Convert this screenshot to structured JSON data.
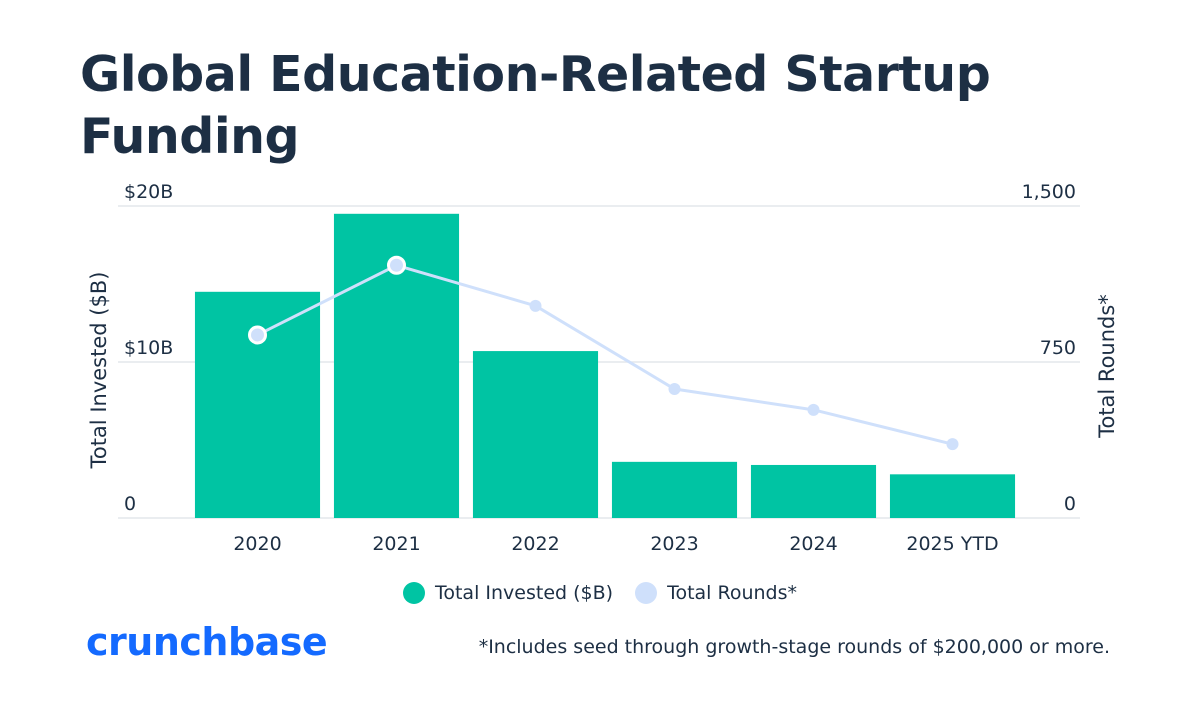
{
  "colors": {
    "bar": "#00c4a3",
    "line": "#cfe0fb",
    "point": "#cfe0fb",
    "point_stroke": "#ffffff",
    "grid": "#e3e7ec",
    "title": "#1d2f44",
    "brand": "#146aff"
  },
  "brand": {
    "name": "crunchbase"
  },
  "footnote": "*Includes seed through growth-stage rounds of $200,000 or more.",
  "chart_data": {
    "type": "bar",
    "title": "Global Education-Related Startup Funding",
    "categories": [
      "2020",
      "2021",
      "2022",
      "2023",
      "2024",
      "2025 YTD"
    ],
    "series": [
      {
        "name": "Total Invested ($B)",
        "chart": "bar",
        "axis": "left",
        "values": [
          14.5,
          19.5,
          10.7,
          3.6,
          3.4,
          2.8
        ]
      },
      {
        "name": "Total Rounds*",
        "chart": "line",
        "axis": "right",
        "values": [
          880,
          1215,
          1020,
          620,
          520,
          355
        ]
      }
    ],
    "y_left": {
      "label": "Total Invested ($B)",
      "ylim": [
        0,
        20
      ],
      "ticks": [
        {
          "value": 0,
          "label": "0"
        },
        {
          "value": 10,
          "label": "$10B"
        },
        {
          "value": 20,
          "label": "$20B"
        }
      ]
    },
    "y_right": {
      "label": "Total Rounds*",
      "ylim": [
        0,
        1500
      ],
      "ticks": [
        {
          "value": 0,
          "label": "0"
        },
        {
          "value": 750,
          "label": "750"
        },
        {
          "value": 1500,
          "label": "1,500"
        }
      ]
    },
    "legend": "bottom-center",
    "grid": true
  }
}
